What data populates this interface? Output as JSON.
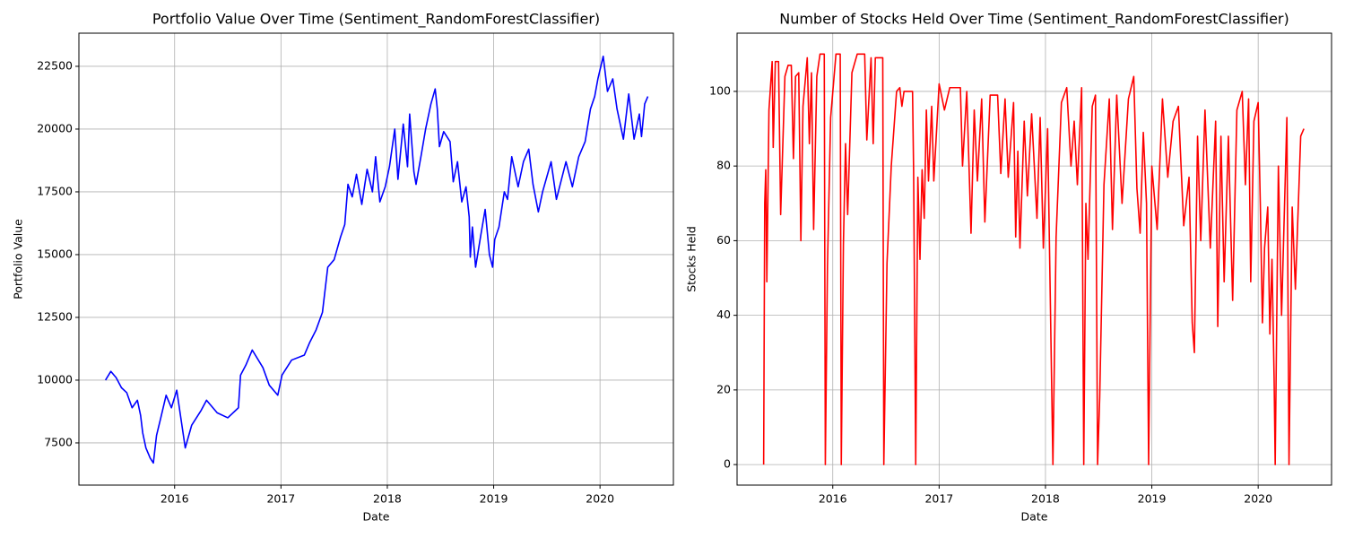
{
  "chart_data": [
    {
      "type": "line",
      "title": "Portfolio Value Over Time (Sentiment_RandomForestClassifier)",
      "xlabel": "Date",
      "ylabel": "Portfolio Value",
      "color": "#0000ff",
      "grid": true,
      "xlim": [
        2015.1,
        2020.69
      ],
      "xticks": [
        2016,
        2017,
        2018,
        2019,
        2020
      ],
      "ylim": [
        5820,
        23820
      ],
      "yticks": [
        7500,
        10000,
        12500,
        15000,
        17500,
        20000,
        22500
      ],
      "x": [
        2015.35,
        2015.4,
        2015.45,
        2015.5,
        2015.55,
        2015.6,
        2015.65,
        2015.68,
        2015.7,
        2015.73,
        2015.77,
        2015.8,
        2015.83,
        2015.87,
        2015.92,
        2015.97,
        2016.02,
        2016.1,
        2016.16,
        2016.25,
        2016.3,
        2016.4,
        2016.5,
        2016.6,
        2016.62,
        2016.67,
        2016.73,
        2016.83,
        2016.89,
        2016.97,
        2017.01,
        2017.1,
        2017.22,
        2017.27,
        2017.33,
        2017.39,
        2017.44,
        2017.5,
        2017.56,
        2017.6,
        2017.63,
        2017.67,
        2017.71,
        2017.76,
        2017.81,
        2017.86,
        2017.89,
        2017.93,
        2017.98,
        2018.02,
        2018.07,
        2018.1,
        2018.15,
        2018.19,
        2018.21,
        2018.25,
        2018.27,
        2018.32,
        2018.36,
        2018.41,
        2018.45,
        2018.47,
        2018.49,
        2018.53,
        2018.59,
        2018.62,
        2018.66,
        2018.7,
        2018.74,
        2018.77,
        2018.78,
        2018.8,
        2018.83,
        2018.88,
        2018.92,
        2018.96,
        2018.99,
        2019.01,
        2019.05,
        2019.1,
        2019.13,
        2019.17,
        2019.23,
        2019.28,
        2019.33,
        2019.37,
        2019.42,
        2019.46,
        2019.54,
        2019.59,
        2019.68,
        2019.74,
        2019.8,
        2019.86,
        2019.91,
        2019.95,
        2019.98,
        2020.03,
        2020.07,
        2020.12,
        2020.16,
        2020.22,
        2020.27,
        2020.32,
        2020.37,
        2020.39,
        2020.42,
        2020.45
      ],
      "values": [
        10000,
        10350,
        10100,
        9700,
        9500,
        8900,
        9200,
        8600,
        7900,
        7300,
        6900,
        6700,
        7800,
        8500,
        9400,
        8900,
        9600,
        7300,
        8200,
        8800,
        9200,
        8700,
        8500,
        8900,
        10200,
        10600,
        11200,
        10500,
        9800,
        9400,
        10200,
        10800,
        11000,
        11500,
        12000,
        12700,
        14500,
        14800,
        15700,
        16200,
        17800,
        17300,
        18200,
        17000,
        18400,
        17500,
        18900,
        17100,
        17700,
        18500,
        20000,
        18000,
        20200,
        18500,
        20600,
        18300,
        17800,
        19000,
        20000,
        21000,
        21600,
        20800,
        19300,
        19900,
        19500,
        17900,
        18700,
        17100,
        17700,
        16500,
        14900,
        16100,
        14500,
        15800,
        16800,
        15000,
        14500,
        15600,
        16100,
        17500,
        17200,
        18900,
        17700,
        18700,
        19200,
        17800,
        16700,
        17500,
        18700,
        17200,
        18700,
        17700,
        18900,
        19500,
        20800,
        21300,
        22000,
        22900,
        21500,
        22000,
        20800,
        19600,
        21400,
        19600,
        20600,
        19700,
        21000,
        21300
      ]
    },
    {
      "type": "line",
      "title": "Number of Stocks Held Over Time (Sentiment_RandomForestClassifier)",
      "xlabel": "Date",
      "ylabel": "Stocks Held",
      "color": "#ff0000",
      "grid": true,
      "xlim": [
        2015.1,
        2020.69
      ],
      "xticks": [
        2016,
        2017,
        2018,
        2019,
        2020
      ],
      "ylim": [
        -5.5,
        115.6
      ],
      "yticks": [
        0,
        20,
        40,
        60,
        80,
        100
      ],
      "x": [
        2015.35,
        2015.36,
        2015.37,
        2015.38,
        2015.4,
        2015.43,
        2015.44,
        2015.46,
        2015.49,
        2015.51,
        2015.55,
        2015.58,
        2015.61,
        2015.63,
        2015.65,
        2015.68,
        2015.7,
        2015.72,
        2015.76,
        2015.78,
        2015.8,
        2015.82,
        2015.85,
        2015.88,
        2015.92,
        2015.93,
        2015.95,
        2015.98,
        2016.03,
        2016.07,
        2016.08,
        2016.1,
        2016.12,
        2016.14,
        2016.18,
        2016.23,
        2016.3,
        2016.32,
        2016.36,
        2016.38,
        2016.4,
        2016.47,
        2016.48,
        2016.51,
        2016.55,
        2016.6,
        2016.63,
        2016.65,
        2016.67,
        2016.75,
        2016.76,
        2016.78,
        2016.8,
        2016.82,
        2016.84,
        2016.86,
        2016.88,
        2016.9,
        2016.93,
        2016.95,
        2017.0,
        2017.05,
        2017.1,
        2017.2,
        2017.22,
        2017.26,
        2017.3,
        2017.33,
        2017.36,
        2017.4,
        2017.43,
        2017.48,
        2017.55,
        2017.58,
        2017.62,
        2017.65,
        2017.7,
        2017.72,
        2017.74,
        2017.76,
        2017.8,
        2017.83,
        2017.87,
        2017.92,
        2017.95,
        2017.98,
        2018.02,
        2018.07,
        2018.1,
        2018.15,
        2018.2,
        2018.24,
        2018.27,
        2018.3,
        2018.34,
        2018.36,
        2018.38,
        2018.4,
        2018.44,
        2018.47,
        2018.49,
        2018.51,
        2018.55,
        2018.6,
        2018.63,
        2018.67,
        2018.72,
        2018.78,
        2018.83,
        2018.86,
        2018.89,
        2018.92,
        2018.95,
        2018.97,
        2019.0,
        2019.05,
        2019.1,
        2019.15,
        2019.2,
        2019.25,
        2019.3,
        2019.35,
        2019.38,
        2019.4,
        2019.43,
        2019.46,
        2019.5,
        2019.55,
        2019.6,
        2019.62,
        2019.65,
        2019.68,
        2019.72,
        2019.76,
        2019.8,
        2019.85,
        2019.88,
        2019.91,
        2019.93,
        2019.96,
        2020.0,
        2020.02,
        2020.04,
        2020.06,
        2020.09,
        2020.11,
        2020.13,
        2020.15,
        2020.16,
        2020.19,
        2020.22,
        2020.27,
        2020.29,
        2020.32,
        2020.35,
        2020.4,
        2020.43
      ],
      "values": [
        0,
        70,
        79,
        49,
        95,
        108,
        85,
        108,
        108,
        67,
        104,
        107,
        107,
        82,
        104,
        105,
        60,
        96,
        109,
        86,
        105,
        63,
        104,
        110,
        110,
        0,
        53,
        93,
        110,
        110,
        0,
        59,
        86,
        67,
        105,
        110,
        110,
        87,
        109,
        86,
        109,
        109,
        0,
        54,
        80,
        100,
        101,
        96,
        100,
        100,
        79,
        0,
        77,
        55,
        79,
        66,
        95,
        76,
        96,
        76,
        102,
        95,
        101,
        101,
        80,
        100,
        62,
        95,
        76,
        98,
        65,
        99,
        99,
        78,
        98,
        77,
        97,
        61,
        84,
        58,
        92,
        72,
        94,
        66,
        93,
        58,
        90,
        0,
        61,
        97,
        101,
        80,
        92,
        75,
        101,
        0,
        70,
        55,
        96,
        99,
        0,
        18,
        75,
        98,
        63,
        99,
        70,
        98,
        104,
        74,
        62,
        89,
        70,
        0,
        80,
        63,
        98,
        77,
        92,
        96,
        64,
        77,
        38,
        30,
        88,
        60,
        95,
        58,
        92,
        37,
        88,
        49,
        88,
        44,
        95,
        100,
        75,
        98,
        49,
        92,
        97,
        70,
        38,
        58,
        69,
        35,
        55,
        23,
        0,
        80,
        40,
        93,
        0,
        69,
        47,
        88,
        90
      ]
    }
  ]
}
